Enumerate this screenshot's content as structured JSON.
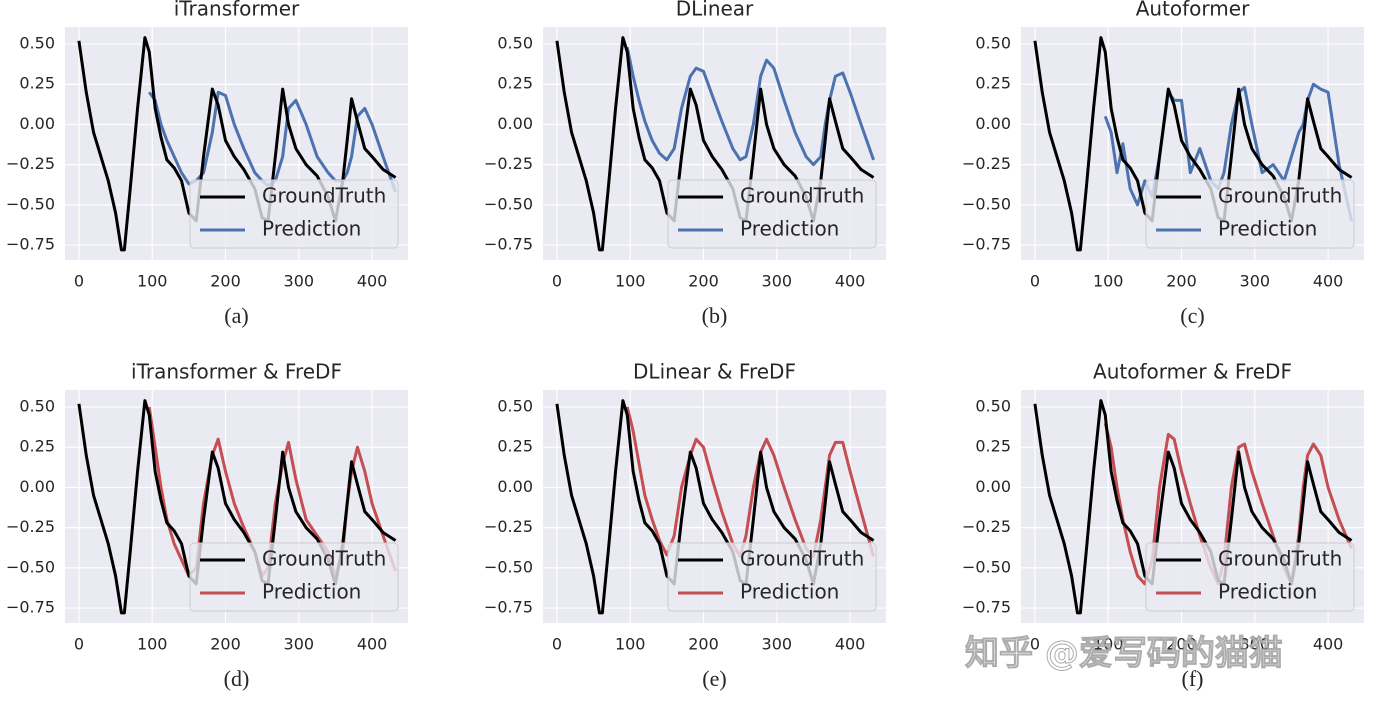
{
  "chart_data": [
    {
      "type": "line",
      "title": "iTransformer",
      "caption": "(a)",
      "x": [
        0,
        10,
        20,
        30,
        40,
        50,
        58,
        62,
        70,
        80,
        90,
        96,
        104,
        112,
        120,
        130,
        140,
        150,
        160,
        170,
        182,
        190,
        200,
        212,
        225,
        240,
        250,
        258,
        268,
        278,
        286,
        296,
        310,
        325,
        340,
        350,
        360,
        366,
        372,
        380,
        390,
        400,
        415,
        432
      ],
      "series": [
        {
          "name": "GroundTruth",
          "color": "#000000",
          "values": [
            0.52,
            0.2,
            -0.05,
            -0.2,
            -0.35,
            -0.55,
            -0.78,
            -0.78,
            -0.4,
            0.1,
            0.54,
            0.45,
            0.1,
            -0.08,
            -0.22,
            -0.27,
            -0.35,
            -0.55,
            -0.6,
            -0.2,
            0.22,
            0.12,
            -0.1,
            -0.2,
            -0.28,
            -0.4,
            -0.58,
            -0.6,
            -0.2,
            0.22,
            0.0,
            -0.15,
            -0.25,
            -0.32,
            -0.45,
            -0.6,
            -0.35,
            -0.1,
            0.16,
            0.02,
            -0.15,
            -0.2,
            -0.28,
            -0.33
          ]
        },
        {
          "name": "Prediction",
          "color": "#4c72b0",
          "values": [
            null,
            null,
            null,
            null,
            null,
            null,
            null,
            null,
            null,
            null,
            null,
            0.2,
            0.15,
            0.0,
            -0.1,
            -0.2,
            -0.3,
            -0.37,
            -0.35,
            -0.3,
            -0.05,
            0.2,
            0.18,
            0.0,
            -0.15,
            -0.3,
            -0.35,
            -0.38,
            -0.35,
            -0.2,
            0.1,
            0.15,
            0.0,
            -0.2,
            -0.3,
            -0.35,
            -0.35,
            -0.3,
            -0.2,
            0.05,
            0.1,
            0.0,
            -0.2,
            -0.42
          ]
        }
      ],
      "xlim": [
        -19,
        449
      ],
      "ylim": [
        -0.843,
        0.606
      ],
      "xticks": [
        0,
        100,
        200,
        300,
        400
      ],
      "yticks": [
        {
          "value": 0.5,
          "label": "0.50"
        },
        {
          "value": 0.25,
          "label": "0.25"
        },
        {
          "value": 0,
          "label": "0.00"
        },
        {
          "value": -0.25,
          "label": "−0.25"
        },
        {
          "value": -0.5,
          "label": "−0.50"
        },
        {
          "value": -0.75,
          "label": "−0.75"
        }
      ],
      "grid": true,
      "legend": "lower right"
    },
    {
      "type": "line",
      "title": "DLinear",
      "caption": "(b)",
      "x": [
        0,
        10,
        20,
        30,
        40,
        50,
        58,
        62,
        70,
        80,
        90,
        96,
        104,
        112,
        120,
        130,
        140,
        150,
        160,
        170,
        182,
        190,
        200,
        212,
        225,
        240,
        250,
        258,
        268,
        278,
        286,
        296,
        310,
        325,
        340,
        350,
        360,
        366,
        372,
        380,
        390,
        400,
        415,
        432
      ],
      "series": [
        {
          "name": "GroundTruth",
          "color": "#000000",
          "values": [
            0.52,
            0.2,
            -0.05,
            -0.2,
            -0.35,
            -0.55,
            -0.78,
            -0.78,
            -0.4,
            0.1,
            0.54,
            0.45,
            0.1,
            -0.08,
            -0.22,
            -0.27,
            -0.35,
            -0.55,
            -0.6,
            -0.2,
            0.22,
            0.12,
            -0.1,
            -0.2,
            -0.28,
            -0.4,
            -0.58,
            -0.6,
            -0.2,
            0.22,
            0.0,
            -0.15,
            -0.25,
            -0.32,
            -0.45,
            -0.6,
            -0.35,
            -0.1,
            0.16,
            0.02,
            -0.15,
            -0.2,
            -0.28,
            -0.33
          ]
        },
        {
          "name": "Prediction",
          "color": "#4c72b0",
          "values": [
            null,
            null,
            null,
            null,
            null,
            null,
            null,
            null,
            null,
            null,
            null,
            0.48,
            0.3,
            0.15,
            0.02,
            -0.1,
            -0.18,
            -0.22,
            -0.15,
            0.1,
            0.3,
            0.35,
            0.33,
            0.18,
            0.02,
            -0.15,
            -0.22,
            -0.2,
            0.0,
            0.3,
            0.4,
            0.35,
            0.15,
            -0.05,
            -0.2,
            -0.25,
            -0.2,
            0.0,
            0.15,
            0.3,
            0.32,
            0.2,
            0.0,
            -0.22
          ]
        }
      ],
      "xlim": [
        -19,
        449
      ],
      "ylim": [
        -0.843,
        0.606
      ],
      "xticks": [
        0,
        100,
        200,
        300,
        400
      ],
      "yticks": [
        {
          "value": 0.5,
          "label": "0.50"
        },
        {
          "value": 0.25,
          "label": "0.25"
        },
        {
          "value": 0,
          "label": "0.00"
        },
        {
          "value": -0.25,
          "label": "−0.25"
        },
        {
          "value": -0.5,
          "label": "−0.50"
        },
        {
          "value": -0.75,
          "label": "−0.75"
        }
      ],
      "grid": true,
      "legend": "lower right"
    },
    {
      "type": "line",
      "title": "Autoformer",
      "caption": "(c)",
      "x": [
        0,
        10,
        20,
        30,
        40,
        50,
        58,
        62,
        70,
        80,
        90,
        96,
        104,
        112,
        120,
        130,
        140,
        150,
        160,
        170,
        182,
        190,
        200,
        212,
        225,
        240,
        250,
        258,
        268,
        278,
        286,
        296,
        310,
        325,
        340,
        350,
        360,
        366,
        372,
        380,
        390,
        400,
        415,
        432
      ],
      "series": [
        {
          "name": "GroundTruth",
          "color": "#000000",
          "values": [
            0.52,
            0.2,
            -0.05,
            -0.2,
            -0.35,
            -0.55,
            -0.78,
            -0.78,
            -0.4,
            0.1,
            0.54,
            0.45,
            0.1,
            -0.08,
            -0.22,
            -0.27,
            -0.35,
            -0.55,
            -0.6,
            -0.2,
            0.22,
            0.12,
            -0.1,
            -0.2,
            -0.28,
            -0.4,
            -0.58,
            -0.6,
            -0.2,
            0.22,
            0.0,
            -0.15,
            -0.25,
            -0.32,
            -0.45,
            -0.6,
            -0.35,
            -0.1,
            0.16,
            0.02,
            -0.15,
            -0.2,
            -0.28,
            -0.33
          ]
        },
        {
          "name": "Prediction",
          "color": "#4c72b0",
          "values": [
            null,
            null,
            null,
            null,
            null,
            null,
            null,
            null,
            null,
            null,
            null,
            0.05,
            -0.05,
            -0.3,
            -0.12,
            -0.4,
            -0.5,
            -0.35,
            -0.45,
            -0.2,
            0.2,
            0.15,
            0.15,
            -0.3,
            -0.15,
            -0.35,
            -0.4,
            -0.3,
            0.0,
            0.2,
            0.23,
            0.0,
            -0.3,
            -0.25,
            -0.35,
            -0.2,
            -0.05,
            0.0,
            0.15,
            0.25,
            0.22,
            0.2,
            -0.25,
            -0.6
          ]
        }
      ],
      "xlim": [
        -19,
        449
      ],
      "ylim": [
        -0.843,
        0.606
      ],
      "xticks": [
        0,
        100,
        200,
        300,
        400
      ],
      "yticks": [
        {
          "value": 0.5,
          "label": "0.50"
        },
        {
          "value": 0.25,
          "label": "0.25"
        },
        {
          "value": 0,
          "label": "0.00"
        },
        {
          "value": -0.25,
          "label": "−0.25"
        },
        {
          "value": -0.5,
          "label": "−0.50"
        },
        {
          "value": -0.75,
          "label": "−0.75"
        }
      ],
      "grid": true,
      "legend": "lower right"
    },
    {
      "type": "line",
      "title": "iTransformer & FreDF",
      "caption": "(d)",
      "x": [
        0,
        10,
        20,
        30,
        40,
        50,
        58,
        62,
        70,
        80,
        90,
        96,
        104,
        112,
        120,
        130,
        140,
        150,
        160,
        170,
        182,
        190,
        200,
        212,
        225,
        240,
        250,
        258,
        268,
        278,
        286,
        296,
        310,
        325,
        340,
        350,
        360,
        366,
        372,
        380,
        390,
        400,
        415,
        432
      ],
      "series": [
        {
          "name": "GroundTruth",
          "color": "#000000",
          "values": [
            0.52,
            0.2,
            -0.05,
            -0.2,
            -0.35,
            -0.55,
            -0.78,
            -0.78,
            -0.4,
            0.1,
            0.54,
            0.45,
            0.1,
            -0.08,
            -0.22,
            -0.27,
            -0.35,
            -0.55,
            -0.6,
            -0.2,
            0.22,
            0.12,
            -0.1,
            -0.2,
            -0.28,
            -0.4,
            -0.58,
            -0.6,
            -0.2,
            0.22,
            0.0,
            -0.15,
            -0.25,
            -0.32,
            -0.45,
            -0.6,
            -0.35,
            -0.1,
            0.16,
            0.02,
            -0.15,
            -0.2,
            -0.28,
            -0.33
          ]
        },
        {
          "name": "Prediction",
          "color": "#c44e52",
          "values": [
            null,
            null,
            null,
            null,
            null,
            null,
            null,
            null,
            null,
            null,
            null,
            0.5,
            0.25,
            0.0,
            -0.2,
            -0.35,
            -0.45,
            -0.55,
            -0.5,
            -0.1,
            0.2,
            0.3,
            0.1,
            -0.1,
            -0.25,
            -0.4,
            -0.55,
            -0.5,
            -0.1,
            0.15,
            0.28,
            0.05,
            -0.2,
            -0.3,
            -0.4,
            -0.55,
            -0.4,
            -0.1,
            0.1,
            0.25,
            0.1,
            -0.1,
            -0.3,
            -0.52
          ]
        }
      ],
      "xlim": [
        -19,
        449
      ],
      "ylim": [
        -0.843,
        0.606
      ],
      "xticks": [
        0,
        100,
        200,
        300,
        400
      ],
      "yticks": [
        {
          "value": 0.5,
          "label": "0.50"
        },
        {
          "value": 0.25,
          "label": "0.25"
        },
        {
          "value": 0,
          "label": "0.00"
        },
        {
          "value": -0.25,
          "label": "−0.25"
        },
        {
          "value": -0.5,
          "label": "−0.50"
        },
        {
          "value": -0.75,
          "label": "−0.75"
        }
      ],
      "grid": true,
      "legend": "lower right"
    },
    {
      "type": "line",
      "title": "DLinear & FreDF",
      "caption": "(e)",
      "x": [
        0,
        10,
        20,
        30,
        40,
        50,
        58,
        62,
        70,
        80,
        90,
        96,
        104,
        112,
        120,
        130,
        140,
        150,
        160,
        170,
        182,
        190,
        200,
        212,
        225,
        240,
        250,
        258,
        268,
        278,
        286,
        296,
        310,
        325,
        340,
        350,
        360,
        366,
        372,
        380,
        390,
        400,
        415,
        432
      ],
      "series": [
        {
          "name": "GroundTruth",
          "color": "#000000",
          "values": [
            0.52,
            0.2,
            -0.05,
            -0.2,
            -0.35,
            -0.55,
            -0.78,
            -0.78,
            -0.4,
            0.1,
            0.54,
            0.45,
            0.1,
            -0.08,
            -0.22,
            -0.27,
            -0.35,
            -0.55,
            -0.6,
            -0.2,
            0.22,
            0.12,
            -0.1,
            -0.2,
            -0.28,
            -0.4,
            -0.58,
            -0.6,
            -0.2,
            0.22,
            0.0,
            -0.15,
            -0.25,
            -0.32,
            -0.45,
            -0.6,
            -0.35,
            -0.1,
            0.16,
            0.02,
            -0.15,
            -0.2,
            -0.28,
            -0.33
          ]
        },
        {
          "name": "Prediction",
          "color": "#c44e52",
          "values": [
            null,
            null,
            null,
            null,
            null,
            null,
            null,
            null,
            null,
            null,
            null,
            0.5,
            0.35,
            0.15,
            -0.05,
            -0.2,
            -0.33,
            -0.42,
            -0.3,
            0.0,
            0.2,
            0.3,
            0.25,
            0.05,
            -0.15,
            -0.35,
            -0.43,
            -0.3,
            0.0,
            0.22,
            0.3,
            0.2,
            0.0,
            -0.2,
            -0.38,
            -0.43,
            -0.2,
            0.0,
            0.2,
            0.28,
            0.28,
            0.1,
            -0.15,
            -0.43
          ]
        }
      ],
      "xlim": [
        -19,
        449
      ],
      "ylim": [
        -0.843,
        0.606
      ],
      "xticks": [
        0,
        100,
        200,
        300,
        400
      ],
      "yticks": [
        {
          "value": 0.5,
          "label": "0.50"
        },
        {
          "value": 0.25,
          "label": "0.25"
        },
        {
          "value": 0,
          "label": "0.00"
        },
        {
          "value": -0.25,
          "label": "−0.25"
        },
        {
          "value": -0.5,
          "label": "−0.50"
        },
        {
          "value": -0.75,
          "label": "−0.75"
        }
      ],
      "grid": true,
      "legend": "lower right"
    },
    {
      "type": "line",
      "title": "Autoformer & FreDF",
      "caption": "(f)",
      "x": [
        0,
        10,
        20,
        30,
        40,
        50,
        58,
        62,
        70,
        80,
        90,
        96,
        104,
        112,
        120,
        130,
        140,
        150,
        160,
        170,
        182,
        190,
        200,
        212,
        225,
        240,
        250,
        258,
        268,
        278,
        286,
        296,
        310,
        325,
        340,
        350,
        360,
        366,
        372,
        380,
        390,
        400,
        415,
        432
      ],
      "series": [
        {
          "name": "GroundTruth",
          "color": "#000000",
          "values": [
            0.52,
            0.2,
            -0.05,
            -0.2,
            -0.35,
            -0.55,
            -0.78,
            -0.78,
            -0.4,
            0.1,
            0.54,
            0.45,
            0.1,
            -0.08,
            -0.22,
            -0.27,
            -0.35,
            -0.55,
            -0.6,
            -0.2,
            0.22,
            0.12,
            -0.1,
            -0.2,
            -0.28,
            -0.4,
            -0.58,
            -0.6,
            -0.2,
            0.22,
            0.0,
            -0.15,
            -0.25,
            -0.32,
            -0.45,
            -0.6,
            -0.35,
            -0.1,
            0.16,
            0.02,
            -0.15,
            -0.2,
            -0.28,
            -0.33
          ]
        },
        {
          "name": "Prediction",
          "color": "#c44e52",
          "values": [
            null,
            null,
            null,
            null,
            null,
            null,
            null,
            null,
            null,
            null,
            null,
            0.4,
            0.25,
            0.0,
            -0.2,
            -0.4,
            -0.55,
            -0.6,
            -0.45,
            0.0,
            0.33,
            0.3,
            0.1,
            -0.1,
            -0.3,
            -0.5,
            -0.6,
            -0.45,
            0.0,
            0.25,
            0.27,
            0.1,
            -0.1,
            -0.3,
            -0.5,
            -0.6,
            -0.3,
            0.0,
            0.2,
            0.27,
            0.2,
            0.0,
            -0.2,
            -0.38
          ]
        }
      ],
      "xlim": [
        -19,
        449
      ],
      "ylim": [
        -0.843,
        0.606
      ],
      "xticks": [
        0,
        100,
        200,
        300,
        400
      ],
      "yticks": [
        {
          "value": 0.5,
          "label": "0.50"
        },
        {
          "value": 0.25,
          "label": "0.25"
        },
        {
          "value": 0,
          "label": "0.00"
        },
        {
          "value": -0.25,
          "label": "−0.25"
        },
        {
          "value": -0.5,
          "label": "−0.50"
        },
        {
          "value": -0.75,
          "label": "−0.75"
        }
      ],
      "grid": true,
      "legend": "lower right"
    }
  ],
  "watermark": "知乎 @爱写码的猫猫"
}
